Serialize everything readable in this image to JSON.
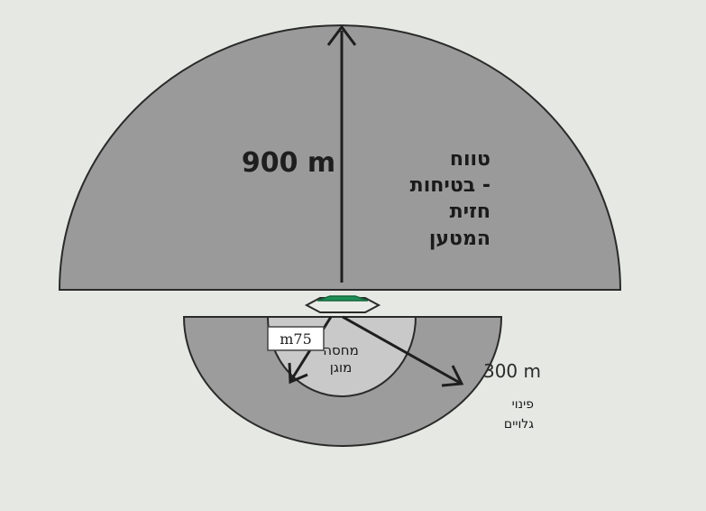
{
  "diagram": {
    "upper_range": {
      "distance_label": "900 m",
      "zone_label_lines": [
        "טווח",
        "בטיחות -",
        "חזית",
        "המטען"
      ]
    },
    "lower_range": {
      "distance_label": "300 m",
      "zone_label_lines": [
        "פינוי",
        "גלויים"
      ]
    },
    "inner_zone": {
      "distance_label": "m75",
      "zone_label_lines": [
        "מחסה",
        "מוגן"
      ]
    },
    "colors": {
      "background": "#e6e9e3",
      "upper_fill": "#9a9a9a",
      "lower_outer_fill": "#9c9c9c",
      "inner_fill": "#c9c9c9",
      "device": "#1f8f55",
      "stroke": "#2a2a2a"
    }
  }
}
